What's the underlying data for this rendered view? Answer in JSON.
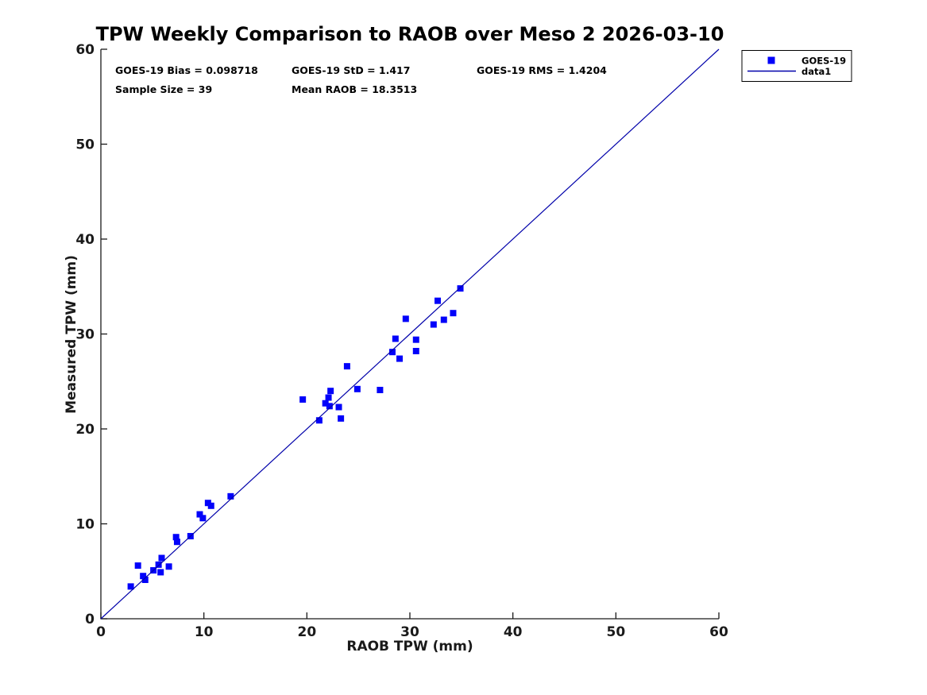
{
  "chart_data": {
    "type": "scatter",
    "title": "TPW Weekly Comparison to RAOB over Meso 2 2026-03-10",
    "xlabel": "RAOB TPW (mm)",
    "ylabel": "Measured TPW (mm)",
    "xlim": [
      0,
      60
    ],
    "ylim": [
      0,
      60
    ],
    "xticks": [
      0,
      10,
      20,
      30,
      40,
      50,
      60
    ],
    "yticks": [
      0,
      10,
      20,
      30,
      40,
      50,
      60
    ],
    "grid": false,
    "legend_position": "outside-top-right",
    "annotations": [
      "GOES-19 Bias = 0.098718",
      "GOES-19 StD = 1.417",
      "GOES-19 RMS = 1.4204",
      "Sample Size = 39",
      "Mean RAOB = 18.3513"
    ],
    "series": [
      {
        "name": "GOES-19",
        "type": "scatter",
        "marker": "square",
        "color": "#0202fa",
        "points": [
          [
            2.9,
            3.4
          ],
          [
            3.6,
            5.6
          ],
          [
            4.1,
            4.5
          ],
          [
            4.3,
            4.1
          ],
          [
            5.1,
            5.1
          ],
          [
            5.6,
            5.7
          ],
          [
            5.9,
            6.4
          ],
          [
            5.8,
            4.9
          ],
          [
            6.6,
            5.5
          ],
          [
            7.3,
            8.6
          ],
          [
            7.4,
            8.1
          ],
          [
            8.7,
            8.7
          ],
          [
            9.6,
            11.0
          ],
          [
            9.9,
            10.6
          ],
          [
            10.4,
            12.2
          ],
          [
            10.7,
            11.9
          ],
          [
            12.6,
            12.9
          ],
          [
            19.6,
            23.1
          ],
          [
            21.2,
            20.9
          ],
          [
            21.8,
            22.7
          ],
          [
            22.1,
            23.3
          ],
          [
            22.2,
            22.4
          ],
          [
            22.3,
            24.0
          ],
          [
            23.1,
            22.3
          ],
          [
            23.3,
            21.1
          ],
          [
            23.9,
            26.6
          ],
          [
            24.9,
            24.2
          ],
          [
            27.1,
            24.1
          ],
          [
            28.3,
            28.1
          ],
          [
            28.6,
            29.5
          ],
          [
            29.0,
            27.4
          ],
          [
            29.6,
            31.6
          ],
          [
            30.6,
            28.2
          ],
          [
            30.6,
            29.4
          ],
          [
            32.3,
            31.0
          ],
          [
            32.7,
            33.5
          ],
          [
            33.3,
            31.5
          ],
          [
            34.2,
            32.2
          ],
          [
            34.9,
            34.8
          ]
        ]
      },
      {
        "name": "data1",
        "type": "line",
        "color": "#0000aa",
        "points": [
          [
            0,
            0
          ],
          [
            60,
            60
          ]
        ]
      }
    ]
  },
  "legend": {
    "entries": [
      {
        "label": "GOES-19",
        "type": "marker",
        "color": "#0202fa"
      },
      {
        "label": "data1",
        "type": "line",
        "color": "#0000aa"
      }
    ]
  },
  "colors": {
    "axis": "#1a1a1a",
    "text": "#000000",
    "background": "#ffffff"
  }
}
